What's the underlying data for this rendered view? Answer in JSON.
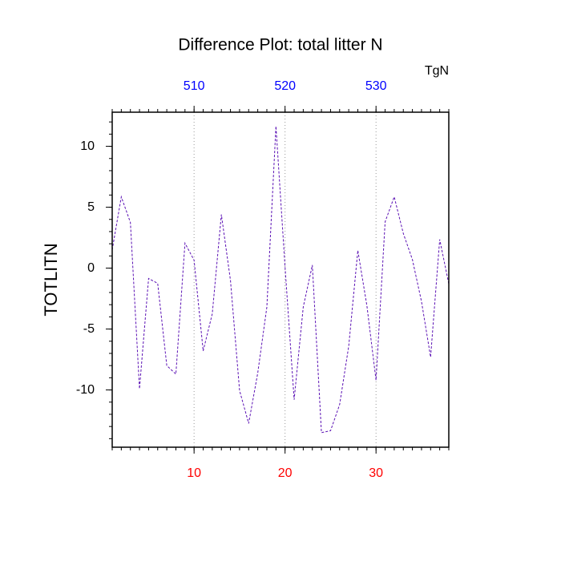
{
  "chart_data": {
    "type": "line",
    "title": "Difference Plot: total litter N",
    "units": "TgN",
    "ylabel": "TOTLITN",
    "x": [
      1,
      2,
      3,
      4,
      5,
      6,
      7,
      8,
      9,
      10,
      11,
      12,
      13,
      14,
      15,
      16,
      17,
      18,
      19,
      20,
      21,
      22,
      23,
      24,
      25,
      26,
      27,
      28,
      29,
      30,
      31,
      32,
      33,
      34,
      35,
      36,
      37,
      38
    ],
    "series": [
      {
        "color": "#5a10b4",
        "dashed": true,
        "values": [
          1.5,
          5.85,
          3.75,
          -9.9,
          -0.85,
          -1.25,
          -8.0,
          -8.7,
          2.05,
          0.65,
          -6.8,
          -3.75,
          4.4,
          -1.0,
          -10.05,
          -12.75,
          -8.6,
          -3.2,
          11.65,
          0.1,
          -10.8,
          -3.2,
          0.25,
          -13.5,
          -13.35,
          -11.2,
          -6.4,
          1.45,
          -3.1,
          -9.2,
          3.8,
          5.85,
          2.85,
          0.7,
          -2.75,
          -7.3,
          2.35,
          -1.3
        ]
      }
    ],
    "xlim": [
      1,
      38
    ],
    "xticks": [
      10,
      20,
      30
    ],
    "xtick_color": "red",
    "x2lim": [
      501,
      538
    ],
    "x2ticks": [
      510,
      520,
      530
    ],
    "x2tick_color": "blue",
    "ylim": [
      -14.7,
      12.8
    ],
    "yticks": [
      10,
      5,
      0,
      -5,
      -10
    ],
    "xgrid": true
  }
}
